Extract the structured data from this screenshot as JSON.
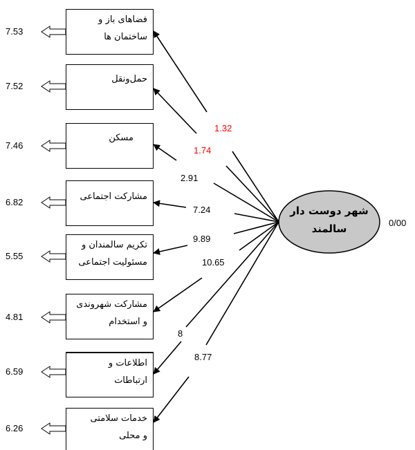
{
  "latent": {
    "line1": "شهر دوست دار",
    "line2": "سالمند",
    "variance": "0/00"
  },
  "indicators": [
    {
      "line1": "فضاهای باز و",
      "line2": "ساختمان ها",
      "error": "7.53",
      "coef": "1.32",
      "coef_red": true
    },
    {
      "line1": "حمل‌ونقل",
      "line2": "",
      "error": "7.52",
      "coef": "1.74",
      "coef_red": true
    },
    {
      "line1": "مسکن",
      "line2": "",
      "error": "7.46",
      "coef": "2.91",
      "coef_red": false
    },
    {
      "line1": "مشارکت اجتماعی",
      "line2": "",
      "error": "6.82",
      "coef": "7.24",
      "coef_red": false
    },
    {
      "line1": "تکریم سالمندان و",
      "line2": "مسئولیت اجتماعی",
      "error": "5.55",
      "coef": "9.89",
      "coef_red": false
    },
    {
      "line1": "مشارکت شهروندی",
      "line2": "و استخدام",
      "error": "4.81",
      "coef": "10.65",
      "coef_red": false
    },
    {
      "line1": "اطلاعات و",
      "line2": "ارتباطات",
      "error": "6.59",
      "coef": "8",
      "coef_red": false
    },
    {
      "line1": "خدمات سلامتی",
      "line2": "و محلی",
      "error": "6.26",
      "coef": "8.77",
      "coef_red": false
    }
  ]
}
